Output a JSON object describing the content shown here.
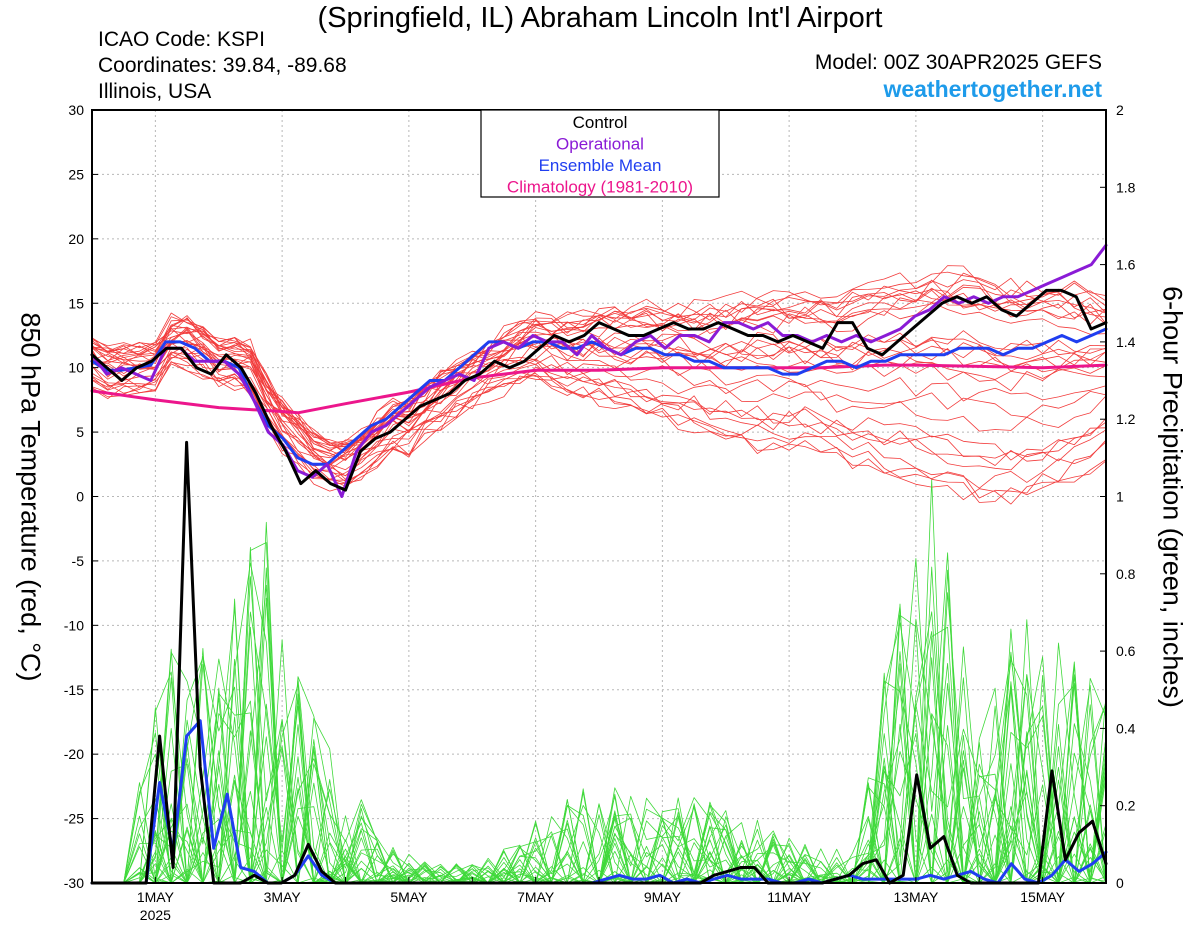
{
  "header": {
    "title": "(Springfield, IL) Abraham Lincoln Int'l Airport",
    "icao": "ICAO Code: KSPI",
    "coordinates": "Coordinates: 39.84, -89.68",
    "region": "Illinois, USA",
    "model": "Model: 00Z 30APR2025 GEFS",
    "site": "weathertogether.net"
  },
  "colors": {
    "control": "#000000",
    "operational": "#8a1bd6",
    "mean": "#1f3ef0",
    "climatology": "#ec168c",
    "members_temp": "#f23c3c",
    "members_precip": "#3fd93a",
    "website": "#1e9bea"
  },
  "chart_data": {
    "type": "line",
    "ylabel": "850 hPa Temperature (red, °C)",
    "y2label": "6-hour Precipitation (green, inches)",
    "ylim": [
      -30,
      30
    ],
    "y2lim": [
      0,
      2
    ],
    "xlim": [
      0,
      16
    ],
    "yticks": [
      -30,
      -25,
      -20,
      -15,
      -10,
      -5,
      0,
      5,
      10,
      15,
      20,
      25,
      30
    ],
    "y2ticks": [
      0,
      0.2,
      0.4,
      0.6,
      0.8,
      1,
      1.2,
      1.4,
      1.6,
      1.8,
      2
    ],
    "xticks": [
      {
        "x": 1,
        "label": "1MAY",
        "sub": "2025"
      },
      {
        "x": 3,
        "label": "3MAY",
        "sub": ""
      },
      {
        "x": 5,
        "label": "5MAY",
        "sub": ""
      },
      {
        "x": 7,
        "label": "7MAY",
        "sub": ""
      },
      {
        "x": 9,
        "label": "9MAY",
        "sub": ""
      },
      {
        "x": 11,
        "label": "11MAY",
        "sub": ""
      },
      {
        "x": 13,
        "label": "13MAY",
        "sub": ""
      },
      {
        "x": 15,
        "label": "15MAY",
        "sub": ""
      }
    ],
    "x_units": "days since 30APR2025 00Z (6-hour steps)",
    "legend": [
      "Control",
      "Operational",
      "Ensemble Mean",
      "Climatology (1981-2010)"
    ],
    "legend_position": "top-center",
    "grid": true,
    "temperature": {
      "control": [
        11.0,
        10.0,
        9.0,
        10.0,
        10.5,
        11.5,
        11.5,
        10.0,
        9.5,
        11.0,
        10.0,
        8.0,
        5.5,
        3.5,
        1.0,
        2.0,
        1.0,
        0.5,
        3.5,
        4.5,
        5.0,
        6.0,
        7.0,
        7.5,
        8.0,
        9.0,
        9.5,
        10.5,
        10.0,
        10.5,
        11.5,
        12.5,
        12.0,
        12.5,
        13.5,
        13.0,
        12.5,
        12.5,
        13.0,
        13.5,
        13.0,
        13.0,
        13.5,
        13.0,
        12.5,
        12.5,
        12.0,
        12.5,
        12.0,
        11.5,
        13.5,
        13.5,
        11.5,
        11.0,
        12.0,
        13.0,
        14.0,
        15.0,
        15.5,
        15.0,
        15.5,
        14.5,
        14.0,
        15.0,
        16.0,
        16.0,
        15.5,
        13.0,
        13.5
      ],
      "operational": [
        11.0,
        9.5,
        10.0,
        9.5,
        9.0,
        11.5,
        11.5,
        10.5,
        10.5,
        10.5,
        9.5,
        7.5,
        5.0,
        4.0,
        2.0,
        1.5,
        2.5,
        0.0,
        3.5,
        5.0,
        5.5,
        6.5,
        7.5,
        8.5,
        9.0,
        9.5,
        9.0,
        11.5,
        12.0,
        11.5,
        12.5,
        12.0,
        12.0,
        11.0,
        12.5,
        11.5,
        11.0,
        12.0,
        12.5,
        11.5,
        12.5,
        12.5,
        12.0,
        13.5,
        13.5,
        13.0,
        13.5,
        12.5,
        12.5,
        12.0,
        12.5,
        12.0,
        12.5,
        12.0,
        12.5,
        13.0,
        14.0,
        14.5,
        15.5,
        15.0,
        15.5,
        15.0,
        15.5,
        15.5,
        16.0,
        16.5,
        17.0,
        17.5,
        18.0,
        19.5
      ],
      "mean": [
        10.5,
        9.8,
        9.8,
        10.0,
        10.2,
        12.0,
        12.0,
        11.5,
        10.5,
        10.5,
        10.0,
        7.5,
        5.5,
        4.5,
        3.0,
        2.5,
        2.5,
        3.5,
        4.5,
        5.5,
        6.0,
        7.0,
        8.0,
        9.0,
        9.0,
        10.0,
        11.0,
        12.0,
        12.0,
        11.5,
        12.0,
        12.0,
        11.5,
        11.5,
        12.0,
        11.5,
        11.0,
        11.5,
        11.5,
        11.0,
        11.0,
        10.5,
        10.5,
        10.0,
        10.0,
        10.0,
        10.0,
        9.5,
        9.5,
        10.0,
        10.5,
        10.5,
        10.0,
        10.5,
        10.5,
        11.0,
        11.0,
        11.0,
        11.0,
        11.5,
        11.5,
        11.5,
        11.0,
        11.5,
        11.5,
        12.0,
        12.5,
        12.0,
        12.5,
        13.0
      ],
      "climatology": [
        8.2,
        7.5,
        6.9,
        6.6,
        6.5,
        7.2,
        8.1,
        9.2,
        9.5,
        9.8,
        9.8,
        9.9,
        10.0,
        10.0,
        10.0,
        10.0,
        10.1,
        10.2,
        10.2,
        10.1,
        10.0,
        10.2
      ],
      "climatology_x": [
        0,
        1,
        2,
        3,
        3.25,
        4,
        5,
        6,
        6.5,
        7,
        8,
        8.5,
        9,
        10,
        11,
        11.5,
        12,
        12.5,
        13,
        14,
        15,
        16
      ],
      "members_band": {
        "low": [
          9,
          10,
          10,
          11,
          7,
          2,
          0,
          3,
          6,
          8,
          9,
          8,
          7,
          6,
          5,
          4,
          4,
          3,
          2,
          1,
          0,
          0,
          1,
          3
        ],
        "high": [
          11,
          12,
          13,
          13,
          11,
          6,
          4,
          7,
          10,
          12,
          14,
          14,
          15,
          15,
          15,
          16,
          16,
          16,
          17,
          18,
          18,
          17,
          17,
          16
        ]
      }
    },
    "precipitation": {
      "control": [
        0,
        0,
        0,
        0,
        0,
        0.38,
        0.04,
        1.14,
        0.3,
        0,
        0,
        0,
        0.02,
        0,
        0,
        0.02,
        0.1,
        0.03,
        0,
        0,
        0,
        0,
        0,
        0,
        0,
        0,
        0,
        0,
        0,
        0,
        0,
        0,
        0,
        0,
        0,
        0,
        0,
        0,
        0,
        0,
        0,
        0,
        0,
        0,
        0,
        0,
        0.02,
        0.03,
        0.04,
        0.04,
        0,
        0,
        0,
        0,
        0,
        0.01,
        0.02,
        0.05,
        0.06,
        0,
        0.02,
        0.28,
        0.09,
        0.12,
        0.02,
        0,
        0,
        0,
        0,
        0,
        0,
        0.29,
        0.06,
        0.13,
        0.16,
        0.05
      ],
      "mean": [
        0,
        0,
        0,
        0,
        0,
        0.26,
        0.08,
        0.38,
        0.42,
        0.09,
        0.23,
        0.04,
        0.03,
        0,
        0,
        0.02,
        0.07,
        0.02,
        0,
        0,
        0,
        0,
        0,
        0,
        0,
        0,
        0,
        0,
        0,
        0,
        0,
        0,
        0,
        0,
        0,
        0,
        0,
        0,
        0.01,
        0.02,
        0.01,
        0.01,
        0.02,
        0,
        0.01,
        0,
        0.01,
        0.02,
        0.01,
        0.01,
        0.01,
        0,
        0,
        0.01,
        0,
        0.01,
        0.02,
        0.01,
        0.01,
        0.01,
        0.01,
        0.01,
        0.02,
        0.01,
        0.02,
        0.03,
        0.01,
        0,
        0.05,
        0.01,
        0,
        0.02,
        0.06,
        0.03,
        0.05,
        0.08
      ],
      "members_band": {
        "high": [
          0,
          0.3,
          0.7,
          0.6,
          1.0,
          0.5,
          0.3,
          0.1,
          0.05,
          0.05,
          0.12,
          0.2,
          0.28,
          0.22,
          0.25,
          0.2,
          0.15,
          0.1,
          0.08,
          0.7,
          1.1,
          0.4,
          0.8,
          0.6,
          0.5
        ]
      }
    }
  }
}
